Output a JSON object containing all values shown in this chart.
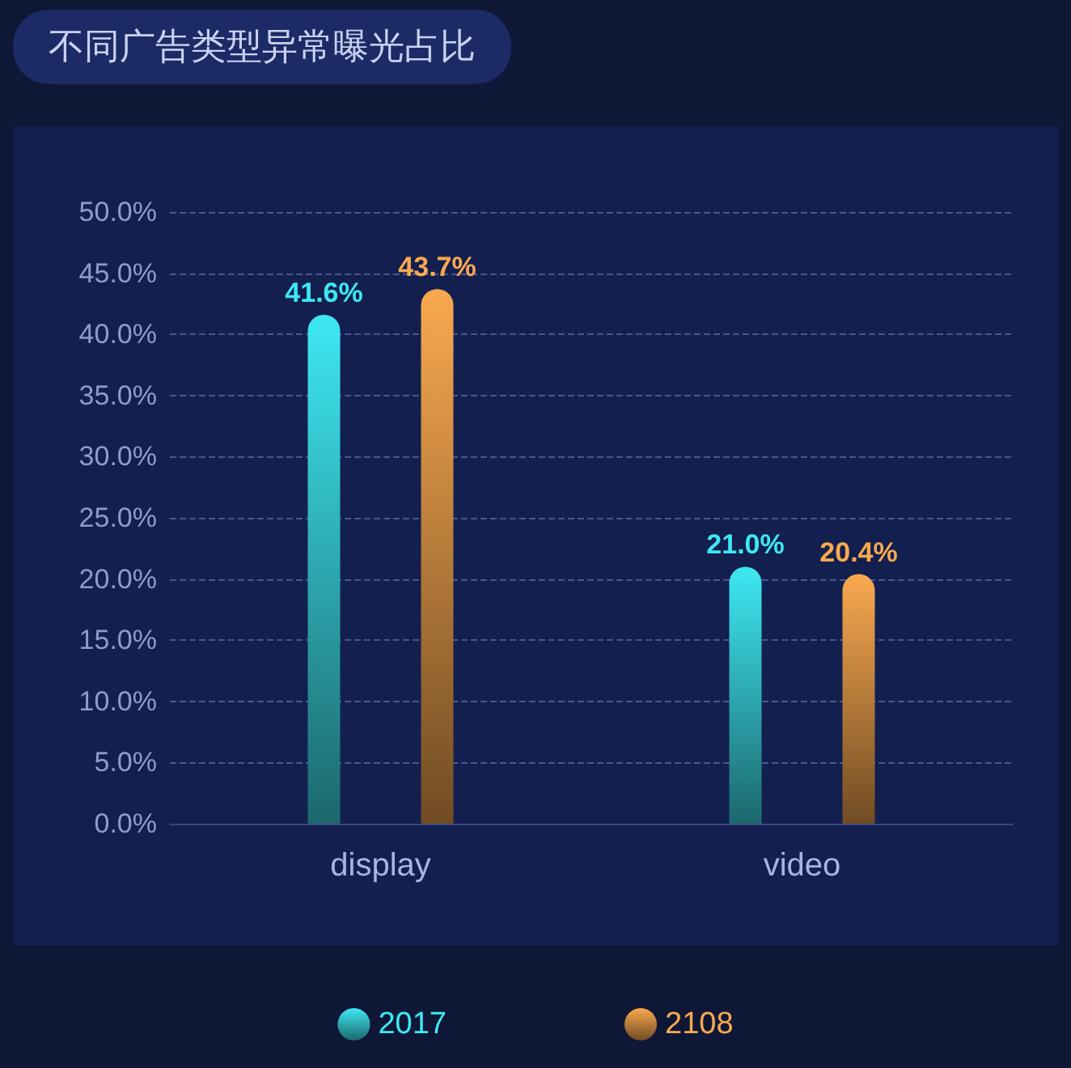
{
  "chart_data": {
    "type": "bar",
    "title": "不同广告类型异常曝光占比",
    "categories": [
      "display",
      "video"
    ],
    "series": [
      {
        "name": "2017",
        "color": "#3ee8f2",
        "values": [
          41.6,
          21.0
        ],
        "value_labels": [
          "41.6%",
          "21.0%"
        ]
      },
      {
        "name": "2108",
        "color": "#f9a94f",
        "values": [
          43.7,
          20.4
        ],
        "value_labels": [
          "43.7%",
          "20.4%"
        ]
      }
    ],
    "ylim": [
      0,
      50
    ],
    "yticks": [
      {
        "value": 0,
        "label": "0.0%"
      },
      {
        "value": 5,
        "label": "5.0%"
      },
      {
        "value": 10,
        "label": "10.0%"
      },
      {
        "value": 15,
        "label": "15.0%"
      },
      {
        "value": 20,
        "label": "20.0%"
      },
      {
        "value": 25,
        "label": "25.0%"
      },
      {
        "value": 30,
        "label": "30.0%"
      },
      {
        "value": 35,
        "label": "35.0%"
      },
      {
        "value": 40,
        "label": "40.0%"
      },
      {
        "value": 45,
        "label": "45.0%"
      },
      {
        "value": 50,
        "label": "50.0%"
      }
    ],
    "grid": "y",
    "legend": "bottom"
  }
}
